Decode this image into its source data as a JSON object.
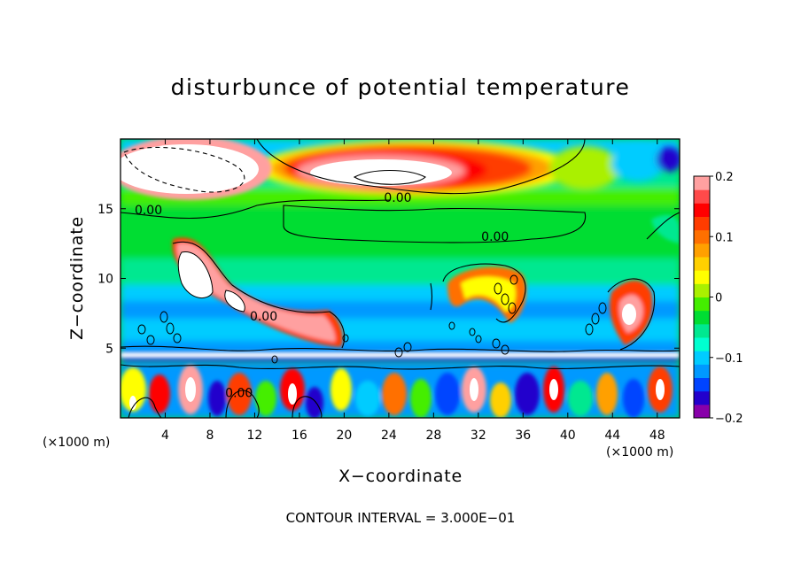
{
  "chart_data": {
    "type": "heatmap",
    "title": "disturbunce of potential temperature",
    "xlabel": "X−coordinate",
    "ylabel": "Z−coordinate",
    "x_unit_left": "(×1000 m)",
    "x_unit_right": "(×1000 m)",
    "footer": "CONTOUR INTERVAL = 3.000E−01",
    "xlim": [
      0,
      50
    ],
    "ylim": [
      0,
      20
    ],
    "x_ticks": [
      4,
      8,
      12,
      16,
      20,
      24,
      28,
      32,
      36,
      40,
      44,
      48
    ],
    "y_ticks": [
      5,
      10,
      15
    ],
    "colorbar": {
      "min": -0.2,
      "max": 0.2,
      "ticks": [
        {
          "value": 0.2,
          "label": "0.2"
        },
        {
          "value": 0.1,
          "label": "0.1"
        },
        {
          "value": 0,
          "label": "0"
        },
        {
          "value": -0.1,
          "label": "−0.1"
        },
        {
          "value": -0.2,
          "label": "−0.2"
        }
      ],
      "colors": [
        "#8800aa",
        "#2200cc",
        "#0044ff",
        "#0099ff",
        "#00ccff",
        "#00ffd0",
        "#00e890",
        "#00dd33",
        "#44ee00",
        "#aaf000",
        "#ffff00",
        "#ffd000",
        "#ffa000",
        "#ff7000",
        "#ff3c00",
        "#ff0000",
        "#ff4a4a",
        "#ffa0a0"
      ]
    },
    "contour_labels": [
      {
        "x": 2.5,
        "y": 14.6,
        "text": "0.00"
      },
      {
        "x": 24.8,
        "y": 15.5,
        "text": "0.00"
      },
      {
        "x": 33.5,
        "y": 12.7,
        "text": "0.00"
      },
      {
        "x": 12.8,
        "y": 7.0,
        "text": "0.00"
      },
      {
        "x": 10.6,
        "y": 1.5,
        "text": "0.00"
      }
    ],
    "values_description": "disturbance field in colour scale from -0.2 to 0.2"
  }
}
